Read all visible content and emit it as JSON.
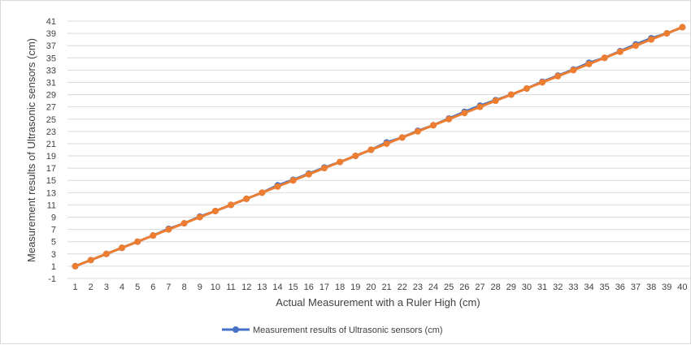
{
  "chart_data": {
    "type": "line",
    "title": "",
    "xlabel": "Actual  Measurement with a Ruler High (cm)",
    "ylabel": "Measurement results of Ultrasonic sensors (cm)",
    "x": [
      1,
      2,
      3,
      4,
      5,
      6,
      7,
      8,
      9,
      10,
      11,
      12,
      13,
      14,
      15,
      16,
      17,
      18,
      19,
      20,
      21,
      22,
      23,
      24,
      25,
      26,
      27,
      28,
      29,
      30,
      31,
      32,
      33,
      34,
      35,
      36,
      37,
      38,
      39,
      40
    ],
    "x_tick_labels": [
      "1",
      "2",
      "3",
      "4",
      "5",
      "6",
      "7",
      "8",
      "9",
      "10",
      "11",
      "12",
      "13",
      "14",
      "15",
      "16",
      "17",
      "18",
      "19",
      "20",
      "21",
      "22",
      "23",
      "24",
      "25",
      "26",
      "27",
      "28",
      "29",
      "30",
      "31",
      "32",
      "33",
      "34",
      "35",
      "36",
      "37",
      "38",
      "39",
      "40"
    ],
    "y_ticks": [
      -1,
      1,
      3,
      5,
      7,
      9,
      11,
      13,
      15,
      17,
      19,
      21,
      23,
      25,
      27,
      29,
      31,
      33,
      35,
      37,
      39,
      41
    ],
    "ylim": [
      -1,
      41
    ],
    "grid": true,
    "legend_position": "bottom",
    "series": [
      {
        "name": "Measurement results of Ultrasonic sensors (cm)",
        "color": "#4472C4",
        "values": [
          1,
          2,
          3,
          4,
          5,
          6,
          7.1,
          8,
          9.1,
          10,
          11,
          12,
          13,
          14.2,
          15.1,
          16.1,
          17.1,
          18,
          19,
          20,
          21.2,
          22,
          23.1,
          24,
          25.1,
          26.2,
          27.2,
          28.1,
          29,
          30,
          31.1,
          32.1,
          33.1,
          34.2,
          35,
          36.1,
          37.2,
          38.2,
          39,
          40
        ]
      },
      {
        "color": "#ED7D31",
        "values": [
          1,
          2,
          3,
          4,
          5,
          6,
          7,
          8,
          9,
          10,
          11,
          12,
          13,
          14,
          15,
          16,
          17,
          18,
          19,
          20,
          21,
          22,
          23,
          24,
          25,
          26,
          27,
          28,
          29,
          30,
          31,
          32,
          33,
          34,
          35,
          36,
          37,
          38,
          39,
          40
        ]
      }
    ]
  }
}
